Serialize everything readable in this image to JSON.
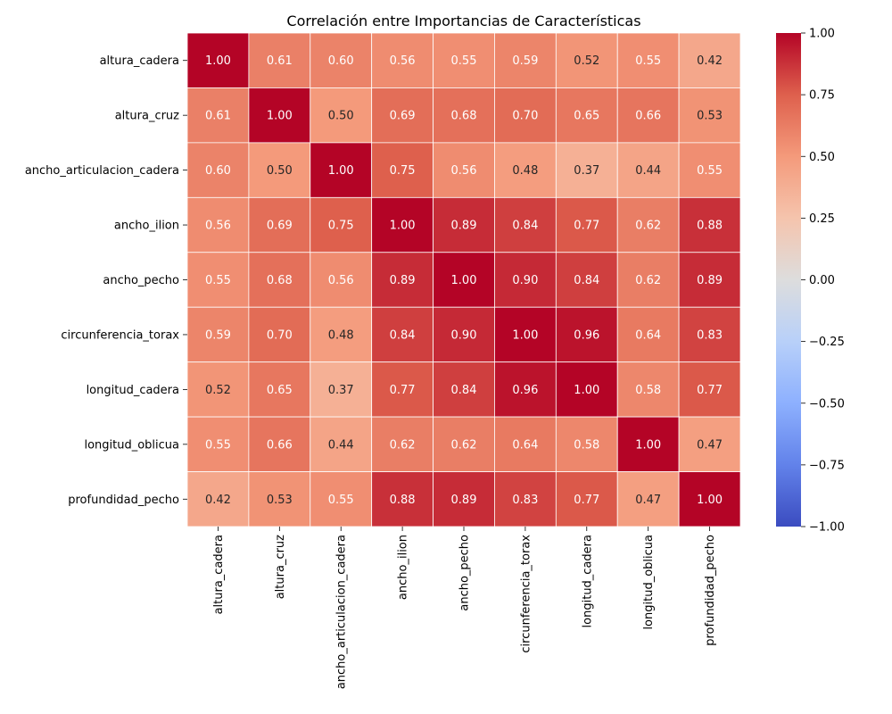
{
  "chart_data": {
    "type": "heatmap",
    "title": "Correlación entre Importancias de Características",
    "variables": [
      "altura_cadera",
      "altura_cruz",
      "ancho_articulacion_cadera",
      "ancho_ilion",
      "ancho_pecho",
      "circunferencia_torax",
      "longitud_cadera",
      "longitud_oblicua",
      "profundidad_pecho"
    ],
    "matrix": [
      [
        1.0,
        0.61,
        0.6,
        0.56,
        0.55,
        0.59,
        0.52,
        0.55,
        0.42
      ],
      [
        0.61,
        1.0,
        0.5,
        0.69,
        0.68,
        0.7,
        0.65,
        0.66,
        0.53
      ],
      [
        0.6,
        0.5,
        1.0,
        0.75,
        0.56,
        0.48,
        0.37,
        0.44,
        0.55
      ],
      [
        0.56,
        0.69,
        0.75,
        1.0,
        0.89,
        0.84,
        0.77,
        0.62,
        0.88
      ],
      [
        0.55,
        0.68,
        0.56,
        0.89,
        1.0,
        0.9,
        0.84,
        0.62,
        0.89
      ],
      [
        0.59,
        0.7,
        0.48,
        0.84,
        0.9,
        1.0,
        0.96,
        0.64,
        0.83
      ],
      [
        0.52,
        0.65,
        0.37,
        0.77,
        0.84,
        0.96,
        1.0,
        0.58,
        0.77
      ],
      [
        0.55,
        0.66,
        0.44,
        0.62,
        0.62,
        0.64,
        0.58,
        1.0,
        0.47
      ],
      [
        0.42,
        0.53,
        0.55,
        0.88,
        0.89,
        0.83,
        0.77,
        0.47,
        1.0
      ]
    ],
    "colorbar": {
      "min": -1.0,
      "max": 1.0,
      "ticks": [
        "1.00",
        "0.75",
        "0.50",
        "0.25",
        "0.00",
        "−0.25",
        "−0.50",
        "−0.75",
        "−1.00"
      ],
      "colormap": "coolwarm"
    },
    "annotate": true,
    "value_format": "0.00"
  }
}
